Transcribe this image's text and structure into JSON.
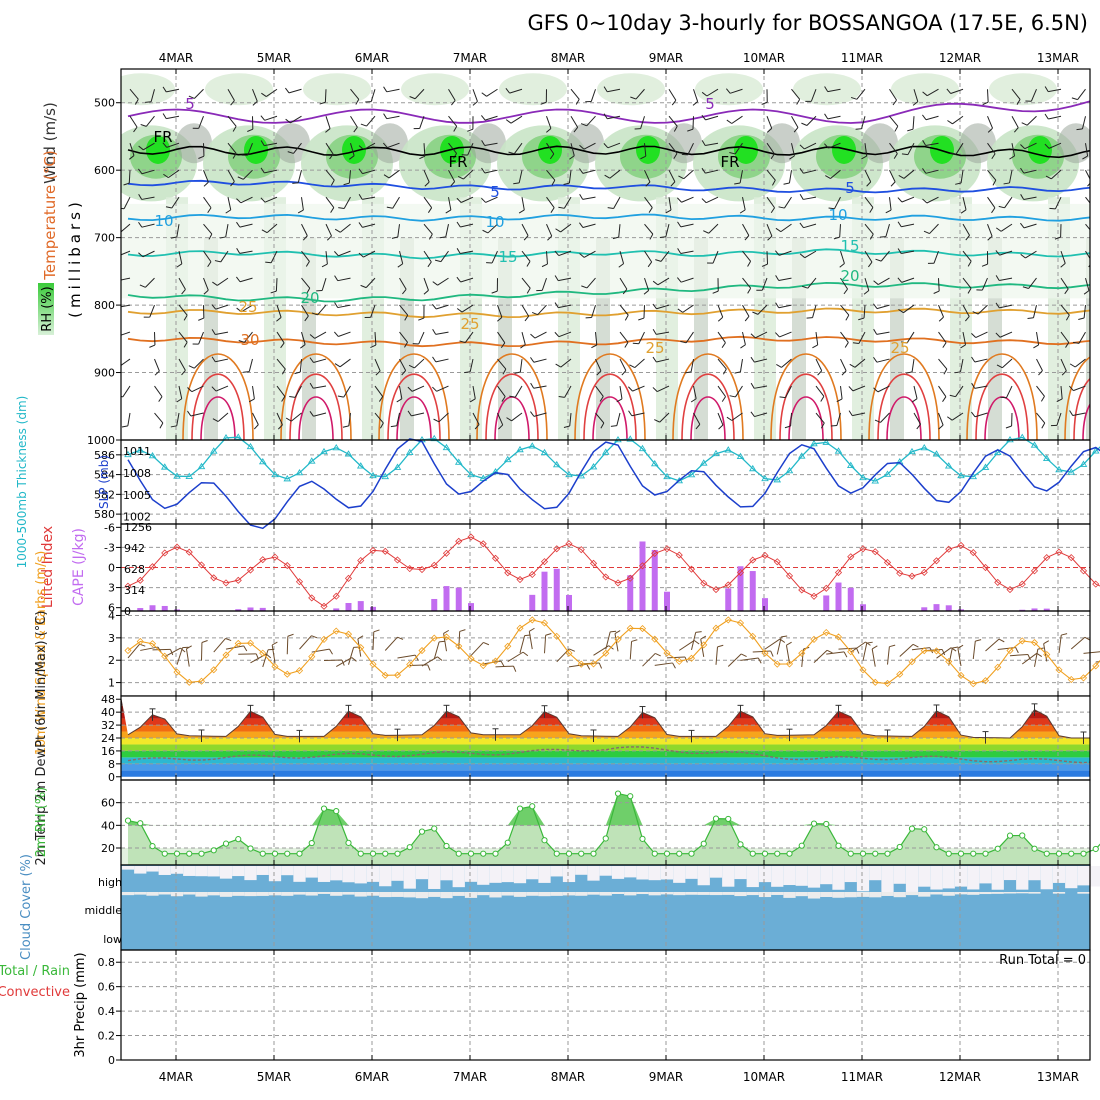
{
  "title": "GFS 0~10day 3-hourly for BOSSANGOA (17.5E, 6.5N)",
  "dates": [
    "4MAR",
    "5MAR",
    "6MAR",
    "7MAR",
    "8MAR",
    "9MAR",
    "10MAR",
    "11MAR",
    "12MAR",
    "13MAR"
  ],
  "colors": {
    "rh": "#33dd33",
    "rh_dark": "#7a8c7a",
    "thickness": "#22b8c8",
    "slp": "#1c3fcc",
    "lifted": "#e03a3a",
    "cape": "#c26cf0",
    "wind_speed": "#f0a020",
    "barb": "#6a4a2a",
    "rh2m": "#3ab83a",
    "cloud": "#6baed6",
    "cloud_bg": "#ececec"
  },
  "chart_data": [
    {
      "type": "area",
      "panel": "cross-section",
      "ylabel_parts": [
        "Wind (m/s)",
        "Temperature (°C)",
        "(millibars)",
        "RH (%)"
      ],
      "y_ticks": [
        "500",
        "600",
        "700",
        "800",
        "900",
        "1000"
      ],
      "ylim": [
        1000,
        450
      ],
      "series": [
        {
          "name": "FR",
          "values": [
            570,
            571,
            572,
            572,
            571,
            570,
            571,
            572,
            570,
            575
          ]
        },
        {
          "name": "5",
          "values": [
            620,
            618,
            621,
            625,
            626,
            624,
            628,
            630,
            630,
            628
          ]
        },
        {
          "name": "10",
          "values": [
            672,
            668,
            670,
            672,
            670,
            668,
            670,
            672,
            670,
            672
          ]
        },
        {
          "name": "15",
          "values": [
            725,
            722,
            725,
            728,
            725,
            722,
            725,
            720,
            722,
            725
          ]
        },
        {
          "name": "20",
          "values": [
            785,
            790,
            792,
            790,
            785,
            780,
            775,
            770,
            770,
            772
          ]
        },
        {
          "name": "25",
          "values": [
            810,
            810,
            812,
            815,
            815,
            812,
            810,
            808,
            808,
            810
          ]
        },
        {
          "name": "30",
          "values": [
            850,
            852,
            855,
            858,
            858,
            855,
            850,
            850,
            852,
            855
          ]
        }
      ],
      "contour_labels": [
        "5",
        "5",
        "FR",
        "FR",
        "FR",
        "5",
        "5",
        "10",
        "10",
        "10",
        "15",
        "15",
        "20",
        "20",
        "25",
        "25",
        "25",
        "25",
        "30"
      ]
    },
    {
      "type": "line",
      "panel": "thickness-slp",
      "ylabel": "1000-500mb Thickness (dm)",
      "ylabel2": "SLP (mb)",
      "y_ticks": [
        "586",
        "584",
        "582",
        "580"
      ],
      "y2_ticks": [
        "1011",
        "1008",
        "1005",
        "1002"
      ],
      "x": [
        "4MAR",
        "5MAR",
        "6MAR",
        "7MAR",
        "8MAR",
        "9MAR",
        "10MAR",
        "11MAR",
        "12MAR",
        "13MAR"
      ],
      "series": [
        {
          "name": "Thickness",
          "values": [
            584.5,
            586.2,
            584.8,
            586.0,
            585.0,
            586.0,
            584.6,
            585.6,
            584.8,
            586.0
          ]
        },
        {
          "name": "SLP",
          "values": [
            1008.0,
            1003.0,
            1004.0,
            1010.5,
            1004.0,
            1010.0,
            1004.5,
            1009.5,
            1006.0,
            1008.5
          ]
        }
      ]
    },
    {
      "type": "bar",
      "panel": "lifted-cape",
      "ylabel": "Lifted Index",
      "ylabel2": "CAPE (J/kg)",
      "y_ticks": [
        "-6",
        "-3",
        "0",
        "3",
        "6"
      ],
      "y2_ticks": [
        "1256",
        "942",
        "628",
        "314",
        "0"
      ],
      "x": [
        "4MAR",
        "5MAR",
        "6MAR",
        "7MAR",
        "8MAR",
        "9MAR",
        "10MAR",
        "11MAR",
        "12MAR",
        "13MAR"
      ],
      "series": [
        {
          "name": "Lifted Index",
          "values": [
            0.0,
            -0.5,
            3.0,
            -2.5,
            -1.0,
            -0.5,
            0.5,
            1.5,
            -1.5,
            0.5
          ]
        },
        {
          "name": "CAPE",
          "values": [
            100,
            60,
            40,
            380,
            420,
            1200,
            750,
            550,
            130,
            40
          ]
        }
      ]
    },
    {
      "type": "line",
      "panel": "wind-10m",
      "ylabel": "10m Wind Speed & Barbs (m/s)",
      "y_ticks": [
        "4",
        "3",
        "2",
        "1"
      ],
      "x": [
        "4MAR",
        "5MAR",
        "6MAR",
        "7MAR",
        "8MAR",
        "9MAR",
        "10MAR",
        "11MAR",
        "12MAR",
        "13MAR"
      ],
      "series": [
        {
          "name": "Speed",
          "values": [
            2.0,
            1.8,
            2.5,
            2.0,
            3.0,
            2.5,
            3.0,
            2.5,
            1.5,
            2.0
          ]
        }
      ]
    },
    {
      "type": "area",
      "panel": "temp-2m",
      "ylabel": "2m Temp 2m DewPt (6hr Min/Max) (°C)",
      "y_ticks": [
        "48",
        "40",
        "32",
        "24",
        "16",
        "8",
        "0"
      ],
      "x": [
        "4MAR",
        "5MAR",
        "6MAR",
        "7MAR",
        "8MAR",
        "9MAR",
        "10MAR",
        "11MAR",
        "12MAR",
        "13MAR"
      ],
      "series": [
        {
          "name": "Temp max",
          "values": [
            38,
            41,
            41,
            41,
            41,
            40,
            41,
            41,
            41,
            42
          ]
        },
        {
          "name": "Temp min",
          "values": [
            26,
            25,
            25,
            26,
            26,
            25,
            25,
            26,
            25,
            24
          ]
        },
        {
          "name": "DewPt",
          "values": [
            10,
            12,
            13,
            14,
            15,
            18,
            15,
            11,
            12,
            10
          ]
        }
      ]
    },
    {
      "type": "area",
      "panel": "rh-2m",
      "ylabel": "2m RH (%)",
      "y_ticks": [
        "60",
        "40",
        "20"
      ],
      "x": [
        "4MAR",
        "5MAR",
        "6MAR",
        "7MAR",
        "8MAR",
        "9MAR",
        "10MAR",
        "11MAR",
        "12MAR",
        "13MAR"
      ],
      "series": [
        {
          "name": "RH",
          "values": [
            48,
            25,
            60,
            37,
            60,
            75,
            50,
            45,
            40,
            33
          ]
        }
      ]
    },
    {
      "type": "heatmap",
      "panel": "cloud-cover",
      "ylabel": "Cloud Cover (%)",
      "layers": [
        "high",
        "middle",
        "low"
      ],
      "series": [
        {
          "name": "high",
          "values": [
            80,
            60,
            50,
            30,
            45,
            60,
            40,
            30,
            20,
            30
          ]
        },
        {
          "name": "middle",
          "values": [
            90,
            85,
            90,
            80,
            85,
            90,
            90,
            80,
            85,
            95
          ]
        },
        {
          "name": "low",
          "values": [
            100,
            100,
            100,
            100,
            100,
            100,
            100,
            100,
            100,
            100
          ]
        }
      ]
    },
    {
      "type": "bar",
      "panel": "precip",
      "ylabel_parts": [
        "3hr Precip (mm)",
        "Total / Rain",
        "Convective"
      ],
      "y_ticks": [
        "0.8",
        "0.6",
        "0.4",
        "0.2",
        "0"
      ],
      "ylim": [
        0,
        0.9
      ],
      "annotation": "Run Total = 0",
      "x": [
        "4MAR",
        "5MAR",
        "6MAR",
        "7MAR",
        "8MAR",
        "9MAR",
        "10MAR",
        "11MAR",
        "12MAR",
        "13MAR"
      ],
      "series": [
        {
          "name": "Total / Rain",
          "values": [
            0,
            0,
            0,
            0,
            0,
            0,
            0,
            0,
            0,
            0
          ]
        }
      ]
    }
  ]
}
